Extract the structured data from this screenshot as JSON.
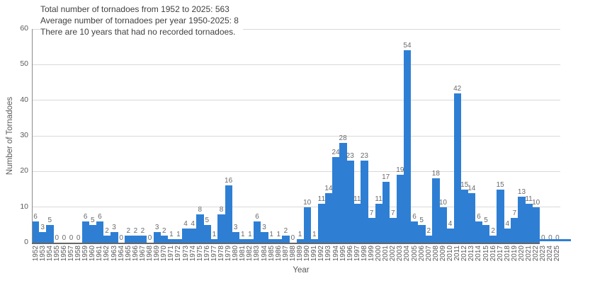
{
  "colors": {
    "bar": "#2e7fd4",
    "gridline": "#d9d9d9",
    "axis_line": "#666666",
    "tick_text": "#595959",
    "value_label_text": "#696969",
    "title_text": "#3f3f3f"
  },
  "chart_data": {
    "type": "bar",
    "title_lines": [
      "Total number of tornadoes from 1952 to 2025: 563",
      "Average number of tornadoes per year 1950-2025: 8",
      "There are 10 years that had no recorded tornadoes."
    ],
    "xlabel": "Year",
    "ylabel": "Number of Tornadoes",
    "ylim": [
      0,
      60
    ],
    "yticks": [
      0,
      10,
      20,
      30,
      40,
      50,
      60
    ],
    "grid": "horizontal",
    "legend": "none",
    "data_labels": "above-bars",
    "categories": [
      "1952",
      "1953",
      "1954",
      "1955",
      "1956",
      "1957",
      "1958",
      "1959",
      "1960",
      "1961",
      "1962",
      "1963",
      "1964",
      "1965",
      "1966",
      "1967",
      "1968",
      "1969",
      "1970",
      "1971",
      "1972",
      "1973",
      "1974",
      "1975",
      "1976",
      "1977",
      "1978",
      "1979",
      "1980",
      "1981",
      "1982",
      "1983",
      "1984",
      "1985",
      "1986",
      "1987",
      "1988",
      "1989",
      "1990",
      "1991",
      "1992",
      "1993",
      "1994",
      "1995",
      "1996",
      "1997",
      "1998",
      "1999",
      "2000",
      "2001",
      "2002",
      "2003",
      "2004",
      "2005",
      "2006",
      "2007",
      "2008",
      "2009",
      "2010",
      "2011",
      "2012",
      "2013",
      "2014",
      "2015",
      "2016",
      "2017",
      "2018",
      "2019",
      "2020",
      "2021",
      "2022",
      "2023",
      "2024",
      "2025"
    ],
    "values": [
      6,
      3,
      5,
      0,
      0,
      0,
      0,
      6,
      5,
      6,
      2,
      3,
      0,
      2,
      2,
      2,
      0,
      3,
      2,
      1,
      1,
      4,
      4,
      8,
      5,
      1,
      8,
      16,
      3,
      1,
      1,
      6,
      3,
      1,
      1,
      2,
      0,
      1,
      10,
      1,
      11,
      14,
      24,
      28,
      23,
      11,
      23,
      7,
      11,
      17,
      7,
      19,
      54,
      6,
      5,
      2,
      18,
      10,
      4,
      42,
      15,
      14,
      6,
      5,
      2,
      15,
      4,
      7,
      13,
      11,
      10,
      0,
      0,
      0
    ]
  }
}
